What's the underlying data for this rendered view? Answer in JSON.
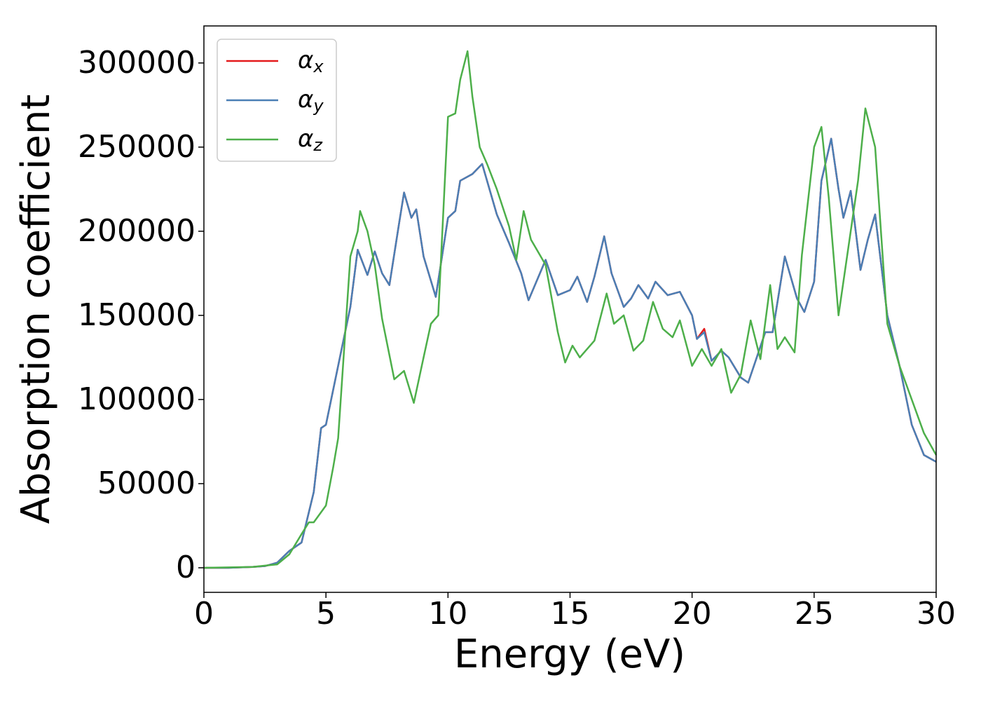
{
  "chart_data": {
    "type": "line",
    "xlabel": "Energy (eV)",
    "ylabel": "Absorption coefficient",
    "xlim": [
      0,
      30
    ],
    "xticks": [
      0,
      5,
      10,
      15,
      20,
      25,
      30
    ],
    "ylim": [
      -14600,
      322000
    ],
    "yticks": [
      0,
      50000,
      100000,
      150000,
      200000,
      250000,
      300000
    ],
    "grid": false,
    "legend": "upper left",
    "series": [
      {
        "name": "αx",
        "color": "#e41a1c",
        "x": [
          0,
          1,
          2,
          2.5,
          3,
          3.5,
          4,
          4.5,
          4.8,
          5,
          5.5,
          6,
          6.3,
          6.7,
          7,
          7.3,
          7.6,
          8,
          8.2,
          8.5,
          8.7,
          9,
          9.5,
          10,
          10.3,
          10.5,
          11,
          11.4,
          12,
          12.5,
          13,
          13.3,
          14,
          14.5,
          15,
          15.3,
          15.7,
          16,
          16.4,
          16.7,
          17.2,
          17.5,
          17.8,
          18.2,
          18.5,
          19,
          19.5,
          20,
          20.2,
          20.5,
          20.8,
          21.2,
          21.5,
          22,
          22.3,
          23,
          23.3,
          23.8,
          24.3,
          24.6,
          25,
          25.3,
          25.7,
          26,
          26.2,
          26.5,
          26.9,
          27.2,
          27.5,
          28,
          28.5,
          29,
          29.5,
          30
        ],
        "values": [
          0,
          0,
          500,
          1000,
          3000,
          10000,
          15000,
          45000,
          83000,
          85000,
          120000,
          155000,
          189000,
          174000,
          188000,
          175000,
          168000,
          205000,
          223000,
          208000,
          213000,
          185000,
          161000,
          208000,
          212000,
          230000,
          234000,
          240000,
          210000,
          193000,
          175000,
          159000,
          183000,
          162000,
          165000,
          173000,
          158000,
          173000,
          197000,
          175000,
          155000,
          160000,
          168000,
          160000,
          170000,
          162000,
          164000,
          150000,
          136000,
          142000,
          123000,
          129000,
          125000,
          113000,
          110000,
          140000,
          140000,
          185000,
          160000,
          152000,
          170000,
          230000,
          255000,
          225000,
          208000,
          224000,
          177000,
          195000,
          210000,
          150000,
          120000,
          85000,
          67000,
          63000
        ]
      },
      {
        "name": "αy",
        "color": "#4a7fb5",
        "x": [
          0,
          1,
          2,
          2.5,
          3,
          3.5,
          4,
          4.5,
          4.8,
          5,
          5.5,
          6,
          6.3,
          6.7,
          7,
          7.3,
          7.6,
          8,
          8.2,
          8.5,
          8.7,
          9,
          9.5,
          10,
          10.3,
          10.5,
          11,
          11.4,
          12,
          12.5,
          13,
          13.3,
          14,
          14.5,
          15,
          15.3,
          15.7,
          16,
          16.4,
          16.7,
          17.2,
          17.5,
          17.8,
          18.2,
          18.5,
          19,
          19.5,
          20,
          20.2,
          20.5,
          20.8,
          21.2,
          21.5,
          22,
          22.3,
          23,
          23.3,
          23.8,
          24.3,
          24.6,
          25,
          25.3,
          25.7,
          26,
          26.2,
          26.5,
          26.9,
          27.2,
          27.5,
          28,
          28.5,
          29,
          29.5,
          30
        ],
        "values": [
          0,
          0,
          500,
          1000,
          3000,
          10000,
          15000,
          45000,
          83000,
          85000,
          120000,
          155000,
          189000,
          174000,
          188000,
          175000,
          168000,
          205000,
          223000,
          208000,
          213000,
          185000,
          161000,
          208000,
          212000,
          230000,
          234000,
          240000,
          210000,
          193000,
          175000,
          159000,
          183000,
          162000,
          165000,
          173000,
          158000,
          173000,
          197000,
          175000,
          155000,
          160000,
          168000,
          160000,
          170000,
          162000,
          164000,
          150000,
          136000,
          140000,
          123000,
          129000,
          125000,
          113000,
          110000,
          140000,
          140000,
          185000,
          160000,
          152000,
          170000,
          230000,
          255000,
          225000,
          208000,
          224000,
          177000,
          195000,
          210000,
          150000,
          120000,
          85000,
          67000,
          63000
        ]
      },
      {
        "name": "αz",
        "color": "#4daf4a",
        "x": [
          0,
          2,
          3,
          3.5,
          4,
          4.3,
          4.5,
          5,
          5.3,
          5.5,
          6,
          6.3,
          6.4,
          6.7,
          7,
          7.3,
          7.8,
          8.2,
          8.6,
          9,
          9.3,
          9.6,
          10,
          10.3,
          10.5,
          10.8,
          11,
          11.3,
          11.6,
          12,
          12.5,
          12.8,
          13.1,
          13.4,
          14,
          14.5,
          14.8,
          15.1,
          15.4,
          16,
          16.5,
          16.8,
          17.2,
          17.6,
          18,
          18.4,
          18.8,
          19.2,
          19.5,
          20,
          20.4,
          20.8,
          21.2,
          21.6,
          22,
          22.4,
          22.8,
          23.2,
          23.5,
          23.8,
          24.2,
          24.5,
          25,
          25.3,
          25.6,
          26,
          26.5,
          26.8,
          27.1,
          27.5,
          28,
          28.5,
          29,
          29.5,
          30
        ],
        "values": [
          0,
          500,
          2000,
          8000,
          20000,
          27000,
          27000,
          37000,
          60000,
          77000,
          185000,
          200000,
          212000,
          200000,
          180000,
          148000,
          112000,
          117000,
          98000,
          125000,
          145000,
          150000,
          268000,
          270000,
          290000,
          307000,
          280000,
          250000,
          240000,
          225000,
          203000,
          183000,
          212000,
          195000,
          180000,
          140000,
          122000,
          132000,
          125000,
          135000,
          163000,
          145000,
          150000,
          129000,
          135000,
          158000,
          142000,
          137000,
          147000,
          120000,
          130000,
          120000,
          130000,
          104000,
          115000,
          147000,
          124000,
          168000,
          130000,
          137000,
          128000,
          186000,
          250000,
          262000,
          220000,
          150000,
          200000,
          230000,
          273000,
          250000,
          145000,
          120000,
          100000,
          80000,
          67000
        ]
      }
    ]
  }
}
